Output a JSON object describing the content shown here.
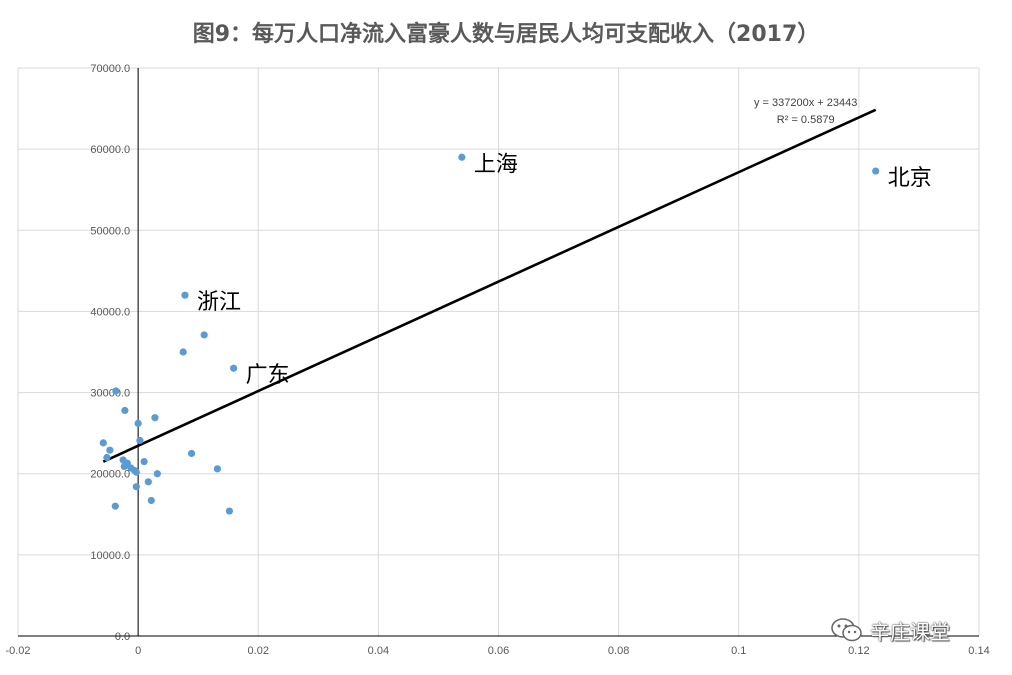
{
  "chart_data": {
    "type": "scatter",
    "title": "图9：每万人口净流入富豪人数与居民人均可支配收入（2017）",
    "xlim": [
      -0.02,
      0.14
    ],
    "ylim": [
      0,
      70000
    ],
    "x_ticks": [
      -0.02,
      0,
      0.02,
      0.04,
      0.06,
      0.08,
      0.1,
      0.12,
      0.14
    ],
    "x_tick_labels": [
      "-0.02",
      "0",
      "0.02",
      "0.04",
      "0.06",
      "0.08",
      "0.1",
      "0.12",
      "0.14"
    ],
    "y_ticks": [
      0,
      10000,
      20000,
      30000,
      40000,
      50000,
      60000,
      70000
    ],
    "y_tick_labels": [
      "0.0",
      "10000.0",
      "20000.0",
      "30000.0",
      "40000.0",
      "50000.0",
      "60000.0",
      "70000.0"
    ],
    "grid": true,
    "marker_color": "#5b9bd5",
    "trendline_color": "#000000",
    "trendline": {
      "slope": 337200,
      "intercept": 23443,
      "x_range": [
        -0.0058,
        0.1228
      ],
      "equation_label": "y = 337200x + 23443",
      "r2_label": "R² = 0.5879"
    },
    "points": [
      {
        "x": 0.0539,
        "y": 59000,
        "label": "上海"
      },
      {
        "x": 0.1228,
        "y": 57300,
        "label": "北京"
      },
      {
        "x": 0.0078,
        "y": 42000,
        "label": "浙江"
      },
      {
        "x": 0.0159,
        "y": 33000,
        "label": "广东"
      },
      {
        "x": 0.011,
        "y": 37100
      },
      {
        "x": 0.0075,
        "y": 35000
      },
      {
        "x": -0.0037,
        "y": 30200
      },
      {
        "x": -0.0022,
        "y": 27800
      },
      {
        "x": 0.0028,
        "y": 26900
      },
      {
        "x": 0.0,
        "y": 26200
      },
      {
        "x": 0.0003,
        "y": 24100
      },
      {
        "x": -0.0058,
        "y": 23800
      },
      {
        "x": -0.0047,
        "y": 22900
      },
      {
        "x": 0.0089,
        "y": 22500
      },
      {
        "x": -0.0052,
        "y": 22000
      },
      {
        "x": -0.0025,
        "y": 21700
      },
      {
        "x": 0.001,
        "y": 21500
      },
      {
        "x": -0.0018,
        "y": 21300
      },
      {
        "x": -0.0023,
        "y": 20900
      },
      {
        "x": -0.0012,
        "y": 20700
      },
      {
        "x": 0.0132,
        "y": 20600
      },
      {
        "x": -0.0006,
        "y": 20400
      },
      {
        "x": -0.0003,
        "y": 20200
      },
      {
        "x": 0.0032,
        "y": 20000
      },
      {
        "x": 0.0017,
        "y": 19000
      },
      {
        "x": -0.0003,
        "y": 18400
      },
      {
        "x": 0.0022,
        "y": 16700
      },
      {
        "x": -0.0038,
        "y": 16000
      },
      {
        "x": 0.0152,
        "y": 15400
      }
    ]
  },
  "watermark": {
    "text": "辛庄课堂",
    "icon": "wechat-icon"
  }
}
